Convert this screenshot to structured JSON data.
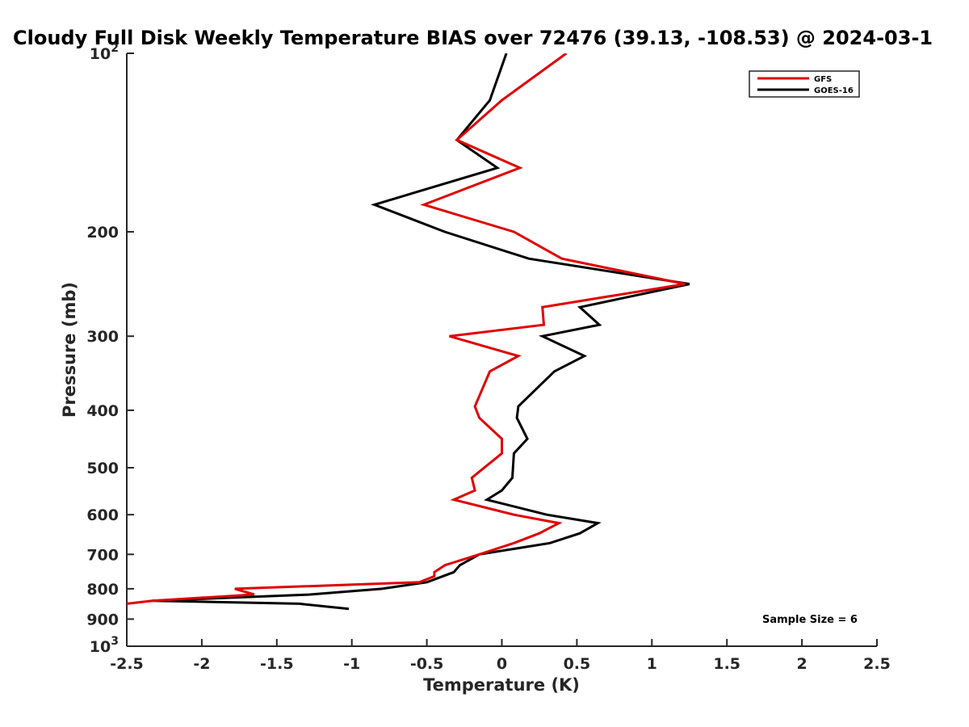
{
  "chart_data": {
    "type": "line",
    "title": "Cloudy Full Disk Weekly Temperature BIAS over 72476 (39.13, -108.53) @ 2024-03-1",
    "xlabel": "Temperature (K)",
    "ylabel": "Pressure (mb)",
    "xlim": [
      -2.5,
      2.5
    ],
    "ylim": [
      100,
      1000
    ],
    "y_scale": "log",
    "y_reversed": true,
    "grid": false,
    "legend_position": "top-right",
    "x_ticks": [
      -2.5,
      -2,
      -1.5,
      -1,
      -0.5,
      0,
      0.5,
      1,
      1.5,
      2,
      2.5
    ],
    "x_tick_labels": [
      "-2.5",
      "-2",
      "-1.5",
      "-1",
      "-0.5",
      "0",
      "0.5",
      "1",
      "1.5",
      "2",
      "2.5"
    ],
    "y_ticks": [
      100,
      200,
      300,
      400,
      500,
      600,
      700,
      800,
      900,
      1000
    ],
    "y_tick_labels": [
      {
        "base": "10",
        "sup": "2"
      },
      {
        "base": "200",
        "sup": ""
      },
      {
        "base": "300",
        "sup": ""
      },
      {
        "base": "400",
        "sup": ""
      },
      {
        "base": "500",
        "sup": ""
      },
      {
        "base": "600",
        "sup": ""
      },
      {
        "base": "700",
        "sup": ""
      },
      {
        "base": "800",
        "sup": ""
      },
      {
        "base": "900",
        "sup": ""
      },
      {
        "base": "10",
        "sup": "3"
      }
    ],
    "series": [
      {
        "name": "GFS",
        "color": "#e00000",
        "points": [
          {
            "x": 0.43,
            "y": 100
          },
          {
            "x": 0.0,
            "y": 120
          },
          {
            "x": -0.3,
            "y": 140
          },
          {
            "x": 0.12,
            "y": 156
          },
          {
            "x": -0.52,
            "y": 180
          },
          {
            "x": 0.08,
            "y": 200
          },
          {
            "x": 0.4,
            "y": 222
          },
          {
            "x": 1.22,
            "y": 245
          },
          {
            "x": 0.27,
            "y": 268
          },
          {
            "x": 0.28,
            "y": 287
          },
          {
            "x": -0.35,
            "y": 300
          },
          {
            "x": 0.11,
            "y": 324
          },
          {
            "x": -0.08,
            "y": 344
          },
          {
            "x": -0.18,
            "y": 394
          },
          {
            "x": -0.15,
            "y": 412
          },
          {
            "x": 0.0,
            "y": 447
          },
          {
            "x": 0.0,
            "y": 473
          },
          {
            "x": -0.2,
            "y": 520
          },
          {
            "x": -0.18,
            "y": 546
          },
          {
            "x": -0.32,
            "y": 566
          },
          {
            "x": 0.08,
            "y": 600
          },
          {
            "x": 0.38,
            "y": 620
          },
          {
            "x": 0.25,
            "y": 645
          },
          {
            "x": 0.08,
            "y": 670
          },
          {
            "x": -0.15,
            "y": 700
          },
          {
            "x": -0.38,
            "y": 730
          },
          {
            "x": -0.45,
            "y": 750
          },
          {
            "x": -0.45,
            "y": 762
          },
          {
            "x": -0.55,
            "y": 780
          },
          {
            "x": -1.78,
            "y": 800
          },
          {
            "x": -1.65,
            "y": 818
          },
          {
            "x": -2.33,
            "y": 838
          },
          {
            "x": -2.5,
            "y": 848
          }
        ]
      },
      {
        "name": "GOES-16",
        "color": "#000000",
        "points": [
          {
            "x": 0.03,
            "y": 100
          },
          {
            "x": -0.08,
            "y": 120
          },
          {
            "x": -0.3,
            "y": 140
          },
          {
            "x": -0.03,
            "y": 156
          },
          {
            "x": -0.85,
            "y": 180
          },
          {
            "x": -0.38,
            "y": 200
          },
          {
            "x": 0.18,
            "y": 222
          },
          {
            "x": 1.25,
            "y": 245
          },
          {
            "x": 0.52,
            "y": 268
          },
          {
            "x": 0.65,
            "y": 287
          },
          {
            "x": 0.27,
            "y": 300
          },
          {
            "x": 0.55,
            "y": 324
          },
          {
            "x": 0.35,
            "y": 344
          },
          {
            "x": 0.11,
            "y": 394
          },
          {
            "x": 0.1,
            "y": 412
          },
          {
            "x": 0.17,
            "y": 447
          },
          {
            "x": 0.08,
            "y": 473
          },
          {
            "x": 0.07,
            "y": 520
          },
          {
            "x": 0.0,
            "y": 546
          },
          {
            "x": -0.1,
            "y": 566
          },
          {
            "x": 0.3,
            "y": 600
          },
          {
            "x": 0.64,
            "y": 620
          },
          {
            "x": 0.52,
            "y": 645
          },
          {
            "x": 0.32,
            "y": 670
          },
          {
            "x": -0.15,
            "y": 700
          },
          {
            "x": -0.28,
            "y": 730
          },
          {
            "x": -0.32,
            "y": 750
          },
          {
            "x": -0.5,
            "y": 780
          },
          {
            "x": -0.8,
            "y": 800
          },
          {
            "x": -1.28,
            "y": 818
          },
          {
            "x": -2.33,
            "y": 838
          },
          {
            "x": -1.35,
            "y": 848
          },
          {
            "x": -1.02,
            "y": 865
          }
        ]
      }
    ],
    "annotations": [
      {
        "text": "Sample Size = 6",
        "position": "bottom-right"
      }
    ]
  }
}
